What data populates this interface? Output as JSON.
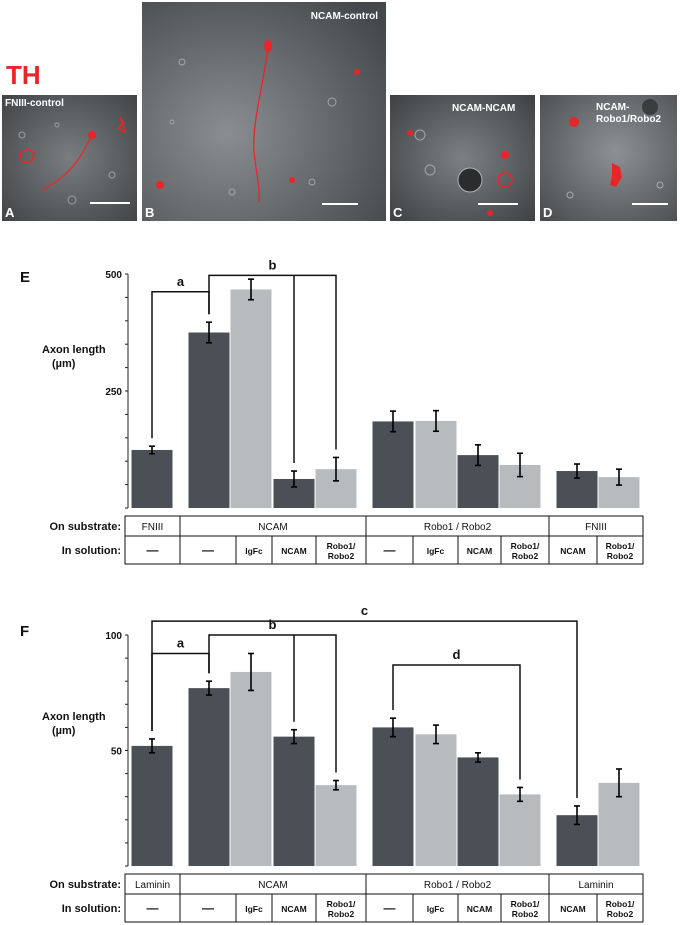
{
  "figure": {
    "stain_label": "TH",
    "panels": [
      {
        "letter": "A",
        "title": "FNIII-control"
      },
      {
        "letter": "B",
        "title": "NCAM-control"
      },
      {
        "letter": "C",
        "title": "NCAM-NCAM"
      },
      {
        "letter": "D",
        "title_line1": "NCAM-",
        "title_line2": "Robo1/Robo2"
      }
    ],
    "colors": {
      "dark_bar": "#4a5055",
      "light_bar": "#b8bbbe",
      "stain": "#e8262a"
    }
  },
  "chart_E": {
    "panel_letter": "E",
    "ylabel_line1": "Axon length",
    "ylabel_line2": "(µm)",
    "tick_labels": [
      "250",
      "500"
    ],
    "sig_labels": [
      "a",
      "b"
    ],
    "table": {
      "row1_label": "On substrate:",
      "row2_label": "In solution:",
      "groups": [
        "FNIII",
        "NCAM",
        "Robo1 / Robo2",
        "FNIII"
      ],
      "solutions": [
        "—",
        "—",
        "IgFc",
        "NCAM",
        "Robo1/\nRobo2",
        "—",
        "IgFc",
        "NCAM",
        "Robo1/\nRobo2",
        "NCAM",
        "Robo1/\nRobo2"
      ]
    }
  },
  "chart_F": {
    "panel_letter": "F",
    "ylabel_line1": "Axon length",
    "ylabel_line2": "(µm)",
    "tick_labels": [
      "50",
      "100"
    ],
    "sig_labels": [
      "a",
      "b",
      "c",
      "d"
    ],
    "table": {
      "row1_label": "On substrate:",
      "row2_label": "In solution:",
      "groups": [
        "Laminin",
        "NCAM",
        "Robo1 / Robo2",
        "Laminin"
      ],
      "solutions": [
        "—",
        "—",
        "IgFc",
        "NCAM",
        "Robo1/\nRobo2",
        "—",
        "IgFc",
        "NCAM",
        "Robo1/\nRobo2",
        "NCAM",
        "Robo1/\nRobo2"
      ]
    }
  },
  "chart_data": [
    {
      "type": "bar",
      "title": "",
      "xlabel": "",
      "ylabel": "Axon length (µm)",
      "ylim": [
        0,
        500
      ],
      "categories": [
        "FNIII / —",
        "NCAM / —",
        "NCAM / IgFc",
        "NCAM / NCAM",
        "NCAM / Robo1/Robo2",
        "Robo1/Robo2 / —",
        "Robo1/Robo2 / IgFc",
        "Robo1/Robo2 / NCAM",
        "Robo1/Robo2 / Robo1/Robo2",
        "FNIII / NCAM",
        "FNIII / Robo1/Robo2"
      ],
      "values": [
        124,
        375,
        467,
        62,
        83,
        185,
        186,
        113,
        92,
        79,
        66
      ],
      "errors": [
        8,
        22,
        22,
        17,
        25,
        22,
        22,
        22,
        25,
        15,
        17
      ],
      "shades": [
        "dark",
        "dark",
        "light",
        "dark",
        "light",
        "dark",
        "light",
        "dark",
        "light",
        "dark",
        "light"
      ]
    },
    {
      "type": "bar",
      "title": "",
      "xlabel": "",
      "ylabel": "Axon length (µm)",
      "ylim": [
        0,
        100
      ],
      "categories": [
        "Laminin / —",
        "NCAM / —",
        "NCAM / IgFc",
        "NCAM / NCAM",
        "NCAM / Robo1/Robo2",
        "Robo1/Robo2 / —",
        "Robo1/Robo2 / IgFc",
        "Robo1/Robo2 / NCAM",
        "Robo1/Robo2 / Robo1/Robo2",
        "Laminin / NCAM",
        "Laminin / Robo1/Robo2"
      ],
      "values": [
        52,
        77,
        84,
        56,
        35,
        60,
        57,
        47,
        31,
        22,
        36
      ],
      "errors": [
        3,
        3,
        8,
        3,
        2,
        4,
        4,
        2,
        3,
        4,
        6
      ],
      "shades": [
        "dark",
        "dark",
        "light",
        "dark",
        "light",
        "dark",
        "light",
        "dark",
        "light",
        "dark",
        "light"
      ]
    }
  ]
}
